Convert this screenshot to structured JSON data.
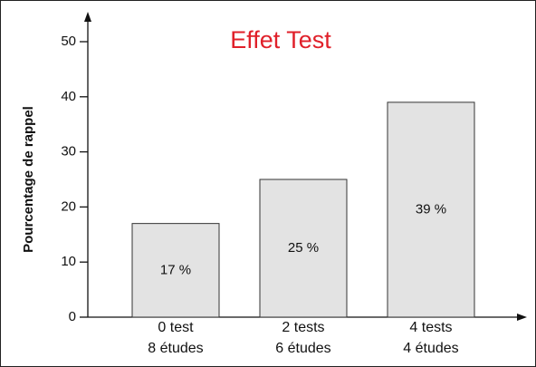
{
  "chart_data": {
    "type": "bar",
    "title": "Effet Test",
    "y_label": "Pourcentage de rappel",
    "categories": [
      [
        "0 test",
        "8 études"
      ],
      [
        "2 tests",
        "6 études"
      ],
      [
        "4 tests",
        "4 études"
      ]
    ],
    "values": [
      17,
      25,
      39
    ],
    "value_labels": [
      "17 %",
      "25 %",
      "39 %"
    ],
    "color": "#e3e3e3",
    "title_color": "#e0202a",
    "ylim": [
      0,
      50
    ],
    "yticks": [
      0,
      10,
      20,
      30,
      40,
      50
    ]
  }
}
